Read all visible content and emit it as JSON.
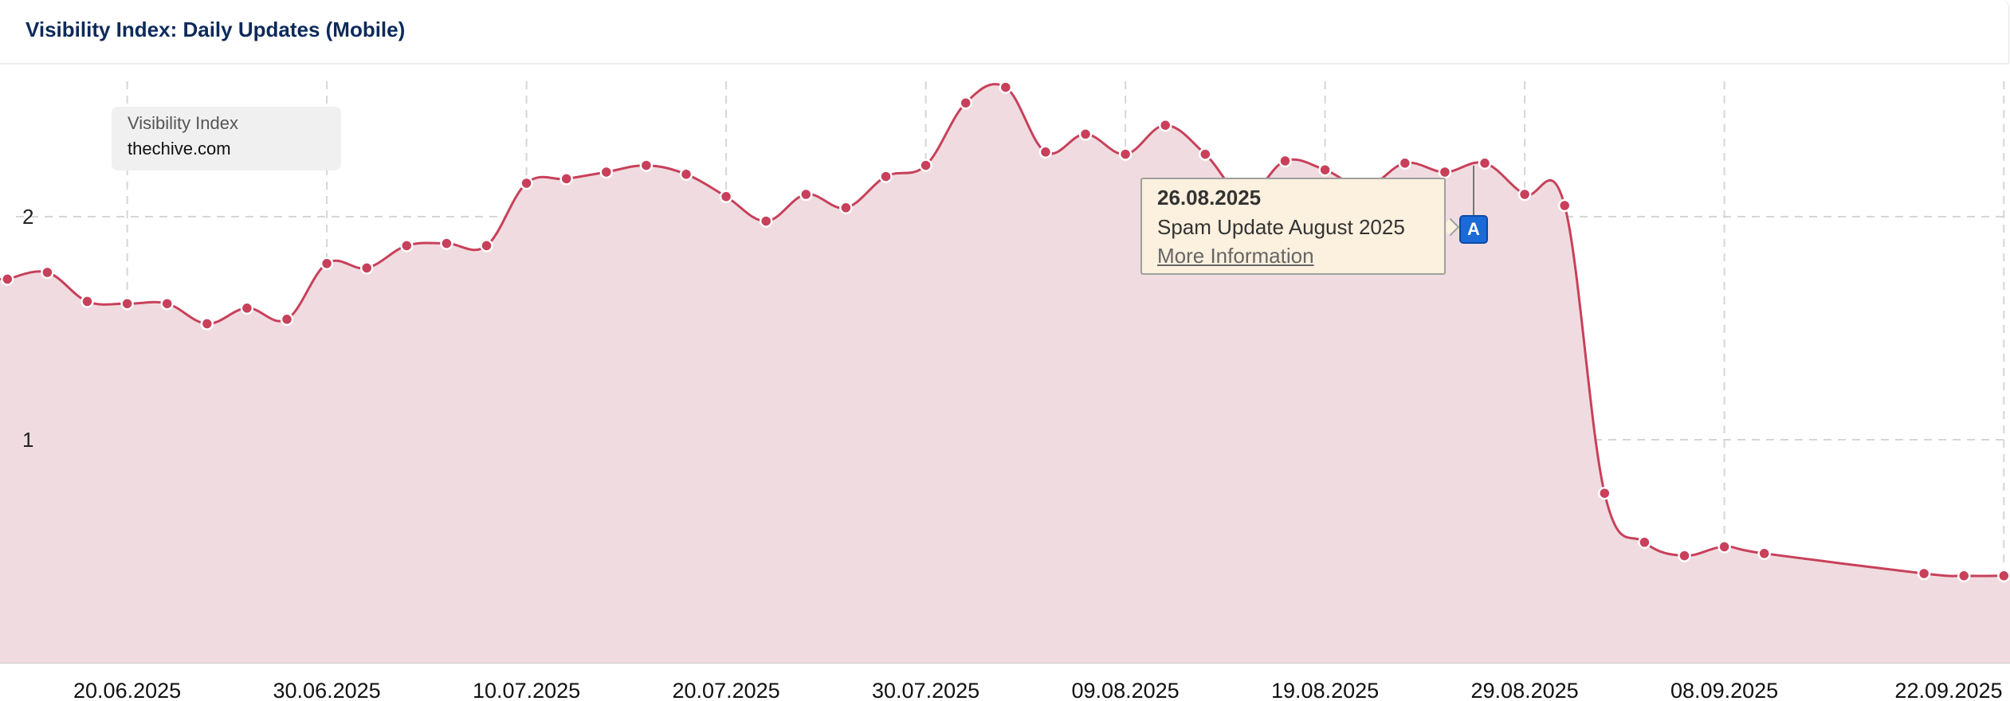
{
  "header": {
    "title": "Visibility Index: Daily Updates (Mobile)"
  },
  "legend": {
    "label": "Visibility Index",
    "domain": "thechive.com"
  },
  "tooltip": {
    "date": "26.08.2025",
    "event": "Spam Update August 2025",
    "link": "More Information"
  },
  "event_flag": {
    "label": "A",
    "date": "26.08.2025",
    "color": "#1a6ad8"
  },
  "chart_data": {
    "type": "area",
    "title": "Visibility Index: Daily Updates (Mobile)",
    "xlabel": "",
    "ylabel": "",
    "ylim": [
      0,
      2.7
    ],
    "yticks": [
      1,
      2
    ],
    "ytick_labels": [
      "1",
      "2"
    ],
    "xticks": [
      "20.06.2025",
      "30.06.2025",
      "10.07.2025",
      "20.07.2025",
      "30.07.2025",
      "09.08.2025",
      "19.08.2025",
      "29.08.2025",
      "08.09.2025",
      "22.09.2025"
    ],
    "grid": true,
    "line_color": "#c8405a",
    "fill_color": "#f0dce0",
    "series": [
      {
        "name": "thechive.com",
        "points": [
          [
            "14.06.2025",
            1.72
          ],
          [
            "16.06.2025",
            1.75
          ],
          [
            "18.06.2025",
            1.62
          ],
          [
            "20.06.2025",
            1.61
          ],
          [
            "22.06.2025",
            1.61
          ],
          [
            "24.06.2025",
            1.52
          ],
          [
            "26.06.2025",
            1.59
          ],
          [
            "28.06.2025",
            1.54
          ],
          [
            "30.06.2025",
            1.79
          ],
          [
            "02.07.2025",
            1.77
          ],
          [
            "04.07.2025",
            1.87
          ],
          [
            "06.07.2025",
            1.88
          ],
          [
            "08.07.2025",
            1.87
          ],
          [
            "10.07.2025",
            2.15
          ],
          [
            "12.07.2025",
            2.17
          ],
          [
            "14.07.2025",
            2.2
          ],
          [
            "16.07.2025",
            2.23
          ],
          [
            "18.07.2025",
            2.19
          ],
          [
            "20.07.2025",
            2.09
          ],
          [
            "22.07.2025",
            1.98
          ],
          [
            "24.07.2025",
            2.1
          ],
          [
            "26.07.2025",
            2.04
          ],
          [
            "28.07.2025",
            2.18
          ],
          [
            "30.07.2025",
            2.23
          ],
          [
            "01.08.2025",
            2.51
          ],
          [
            "03.08.2025",
            2.58
          ],
          [
            "05.08.2025",
            2.29
          ],
          [
            "07.08.2025",
            2.37
          ],
          [
            "09.08.2025",
            2.28
          ],
          [
            "11.08.2025",
            2.41
          ],
          [
            "13.08.2025",
            2.28
          ],
          [
            "15.08.2025",
            2.09
          ],
          [
            "17.08.2025",
            2.25
          ],
          [
            "19.08.2025",
            2.21
          ],
          [
            "21.08.2025",
            2.13
          ],
          [
            "23.08.2025",
            2.24
          ],
          [
            "25.08.2025",
            2.2
          ],
          [
            "27.08.2025",
            2.24
          ],
          [
            "29.08.2025",
            2.1
          ],
          [
            "31.08.2025",
            2.05
          ],
          [
            "02.09.2025",
            0.76
          ],
          [
            "04.09.2025",
            0.54
          ],
          [
            "06.09.2025",
            0.48
          ],
          [
            "08.09.2025",
            0.52
          ],
          [
            "10.09.2025",
            0.49
          ],
          [
            "18.09.2025",
            0.4
          ],
          [
            "20.09.2025",
            0.39
          ],
          [
            "22.09.2025",
            0.39
          ]
        ]
      }
    ]
  }
}
